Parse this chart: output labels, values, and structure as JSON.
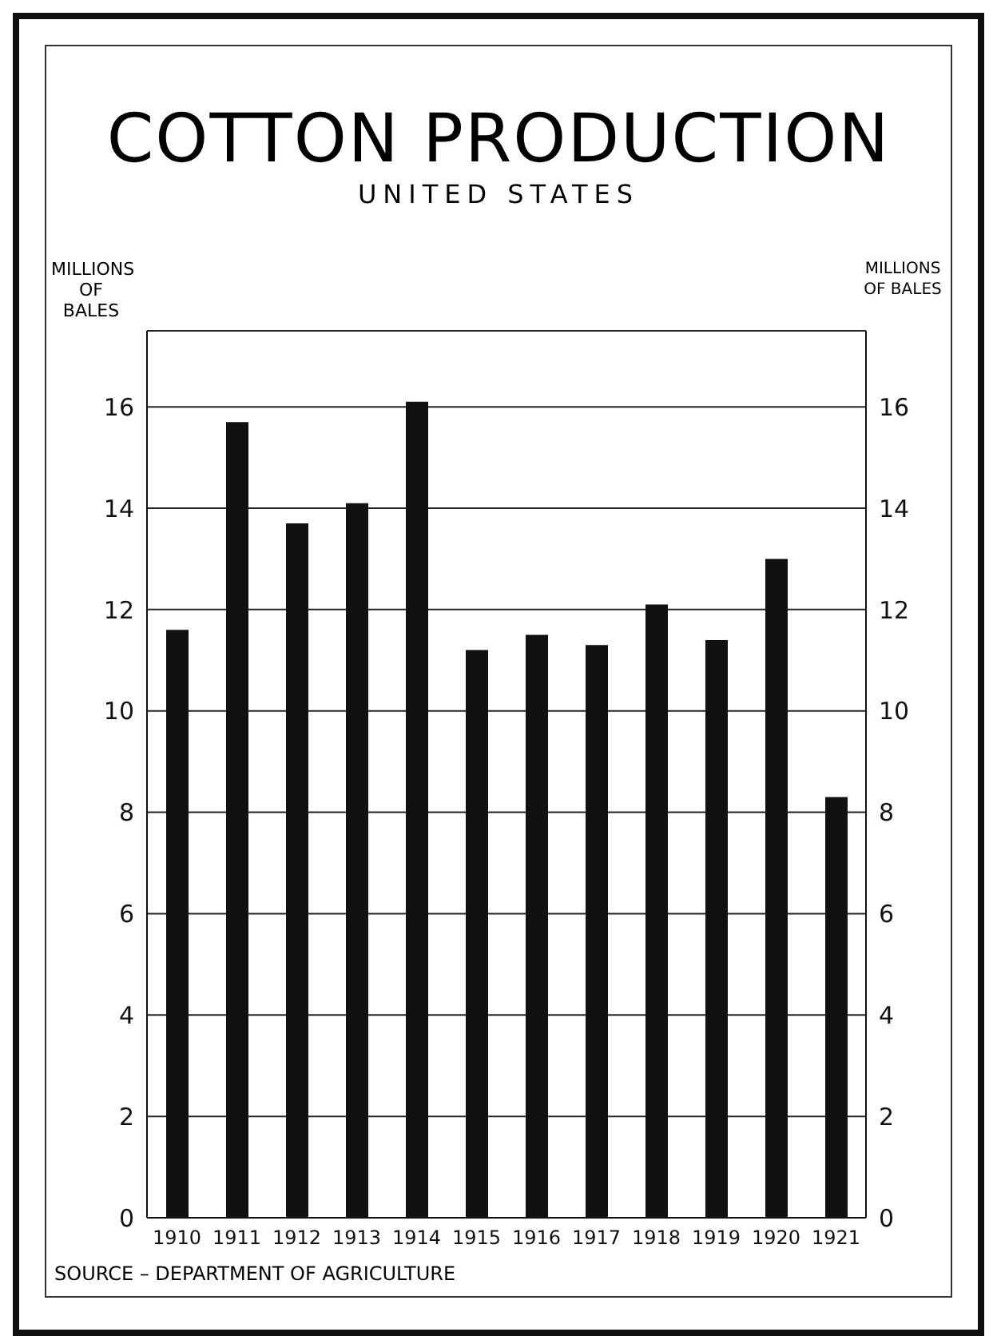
{
  "chart_data": {
    "type": "bar",
    "title": "COTTON PRODUCTION",
    "subtitle": "UNITED STATES",
    "ylabel": "MILLIONS OF BALES",
    "y2label": "MILLIONS OF BALES",
    "categories": [
      "1910",
      "1911",
      "1912",
      "1913",
      "1914",
      "1915",
      "1916",
      "1917",
      "1918",
      "1919",
      "1920",
      "1921"
    ],
    "values": [
      11.6,
      15.7,
      13.7,
      14.1,
      16.1,
      11.2,
      11.5,
      11.3,
      12.1,
      11.4,
      13.0,
      8.3
    ],
    "color": "#111111",
    "ylim": [
      0,
      17.5
    ],
    "yticks": [
      0,
      2,
      4,
      6,
      8,
      10,
      12,
      14,
      16
    ],
    "y2lim": [
      0,
      17.5
    ],
    "y2ticks": [
      0,
      2,
      4,
      6,
      8,
      10,
      12,
      14,
      16
    ],
    "grid": "y",
    "annotations": [
      "SOURCE – DEPARTMENT OF AGRICULTURE"
    ]
  }
}
